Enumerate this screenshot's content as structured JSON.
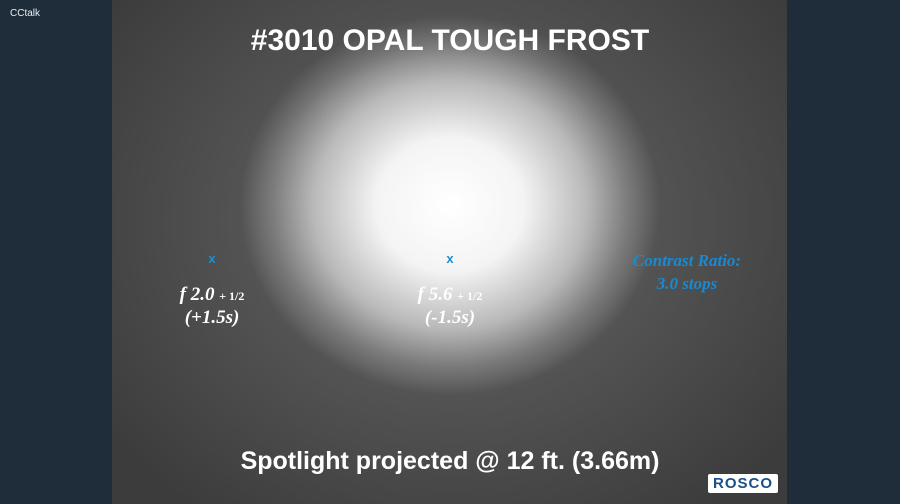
{
  "app": {
    "name": "CCtalk"
  },
  "slide": {
    "title": "#3010 OPAL TOUGH FROST",
    "points": [
      {
        "marker": "x",
        "aperture": "f 2.0",
        "adjustment": "+ 1/2",
        "stops": "(+1.5s)"
      },
      {
        "marker": "x",
        "aperture": "f 5.6",
        "adjustment": "+ 1/2",
        "stops": "(-1.5s)"
      }
    ],
    "note": [
      "Contrast Ratio:",
      "3.0 stops"
    ],
    "caption": "Spotlight projected @ 12 ft. (3.66m)",
    "logo": "rosco"
  }
}
